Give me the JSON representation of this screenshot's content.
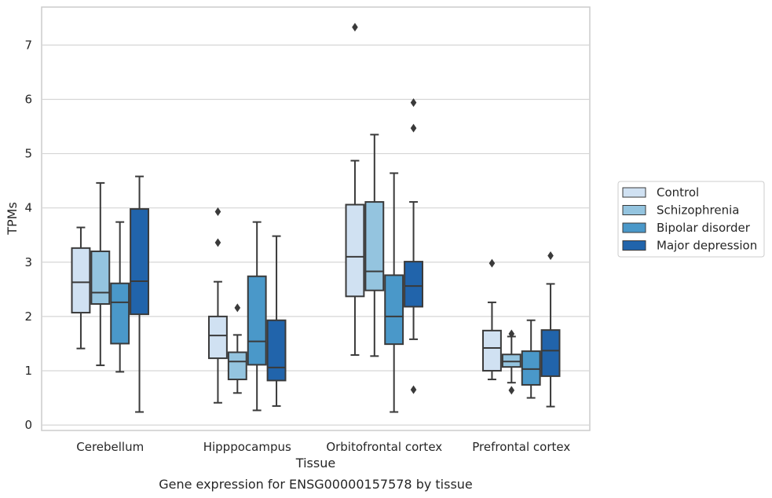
{
  "caption": "Gene expression for ENSG00000157578 by tissue",
  "chart_data": {
    "type": "boxplot",
    "xlabel": "Tissue",
    "ylabel": "TPMs",
    "ylim": [
      -0.1,
      7.7
    ],
    "yticks": [
      0,
      1,
      2,
      3,
      4,
      5,
      6,
      7
    ],
    "grid": "horizontal",
    "legend_position": "right",
    "categories": [
      "Cerebellum",
      "Hipppocampus",
      "Orbitofrontal cortex",
      "Prefrontal cortex"
    ],
    "series": [
      {
        "name": "Control",
        "color": "#d0e1f2",
        "boxes": [
          {
            "whislo": 1.41,
            "q1": 2.07,
            "med": 2.63,
            "q3": 3.26,
            "whishi": 3.64,
            "fliers": []
          },
          {
            "whislo": 0.41,
            "q1": 1.23,
            "med": 1.65,
            "q3": 2.0,
            "whishi": 2.64,
            "fliers": [
              3.36,
              3.93
            ]
          },
          {
            "whislo": 1.29,
            "q1": 2.37,
            "med": 3.1,
            "q3": 4.06,
            "whishi": 4.87,
            "fliers": [
              7.33
            ]
          },
          {
            "whislo": 0.84,
            "q1": 1.0,
            "med": 1.42,
            "q3": 1.74,
            "whishi": 2.26,
            "fliers": [
              2.98
            ]
          }
        ]
      },
      {
        "name": "Schizophrenia",
        "color": "#94c4df",
        "boxes": [
          {
            "whislo": 1.1,
            "q1": 2.23,
            "med": 2.44,
            "q3": 3.2,
            "whishi": 4.46,
            "fliers": []
          },
          {
            "whislo": 0.59,
            "q1": 0.84,
            "med": 1.17,
            "q3": 1.34,
            "whishi": 1.66,
            "fliers": [
              2.16
            ]
          },
          {
            "whislo": 1.27,
            "q1": 2.48,
            "med": 2.83,
            "q3": 4.11,
            "whishi": 5.35,
            "fliers": []
          },
          {
            "whislo": 0.78,
            "q1": 1.07,
            "med": 1.17,
            "q3": 1.3,
            "whishi": 1.63,
            "fliers": [
              0.64,
              1.68
            ]
          }
        ]
      },
      {
        "name": "Bipolar disorder",
        "color": "#4a98c9",
        "boxes": [
          {
            "whislo": 0.98,
            "q1": 1.5,
            "med": 2.26,
            "q3": 2.61,
            "whishi": 3.74,
            "fliers": []
          },
          {
            "whislo": 0.27,
            "q1": 1.11,
            "med": 1.54,
            "q3": 2.74,
            "whishi": 3.74,
            "fliers": []
          },
          {
            "whislo": 0.24,
            "q1": 1.49,
            "med": 2.0,
            "q3": 2.76,
            "whishi": 4.64,
            "fliers": []
          },
          {
            "whislo": 0.5,
            "q1": 0.74,
            "med": 1.03,
            "q3": 1.36,
            "whishi": 1.93,
            "fliers": []
          }
        ]
      },
      {
        "name": "Major depression",
        "color": "#2164ab",
        "boxes": [
          {
            "whislo": 0.24,
            "q1": 2.04,
            "med": 2.65,
            "q3": 3.98,
            "whishi": 4.58,
            "fliers": []
          },
          {
            "whislo": 0.35,
            "q1": 0.82,
            "med": 1.06,
            "q3": 1.93,
            "whishi": 3.48,
            "fliers": []
          },
          {
            "whislo": 1.58,
            "q1": 2.18,
            "med": 2.56,
            "q3": 3.01,
            "whishi": 4.11,
            "fliers": [
              0.65,
              5.47,
              5.94
            ]
          },
          {
            "whislo": 0.34,
            "q1": 0.9,
            "med": 1.37,
            "q3": 1.75,
            "whishi": 2.6,
            "fliers": [
              3.12
            ]
          }
        ]
      }
    ]
  }
}
